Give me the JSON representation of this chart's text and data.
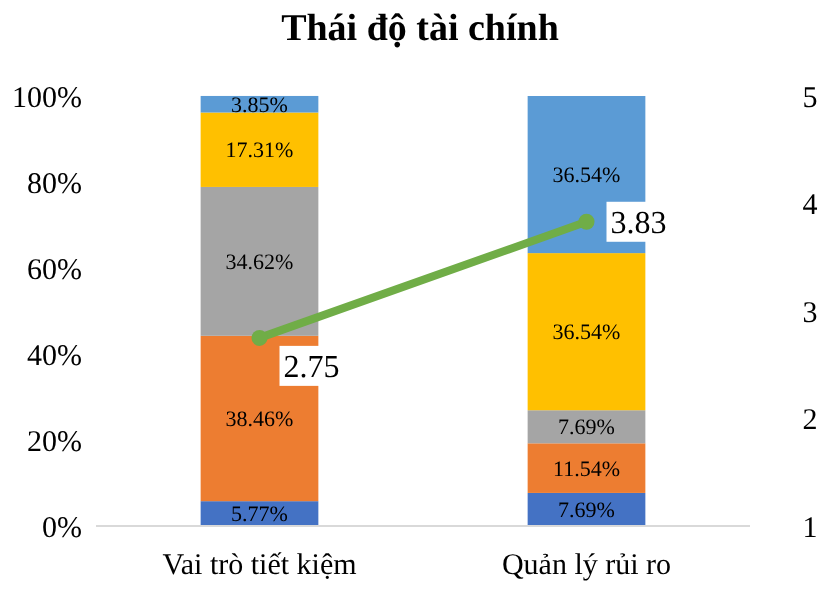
{
  "chart_data": {
    "type": "bar",
    "title": "Thái độ tài chính",
    "categories": [
      "Vai trò tiết kiệm",
      "Quản lý rủi ro"
    ],
    "stacked": true,
    "series": [
      {
        "color": "#4472c4",
        "values": [
          5.77,
          7.69
        ],
        "value_labels": [
          "5.77%",
          "7.69%"
        ]
      },
      {
        "color": "#ed7d31",
        "values": [
          38.46,
          11.54
        ],
        "value_labels": [
          "38.46%",
          "11.54%"
        ]
      },
      {
        "color": "#a5a5a5",
        "values": [
          34.62,
          7.69
        ],
        "value_labels": [
          "34.62%",
          "7.69%"
        ]
      },
      {
        "color": "#ffc000",
        "values": [
          17.31,
          36.54
        ],
        "value_labels": [
          "17.31%",
          "36.54%"
        ]
      },
      {
        "color": "#5b9bd5",
        "values": [
          3.85,
          36.54
        ],
        "value_labels": [
          "3.85%",
          "36.54%"
        ]
      },
      {
        "type": "line",
        "axis": "y2",
        "color": "#70ad47",
        "values": [
          2.75,
          3.83
        ],
        "value_labels": [
          "2.75",
          "3.83"
        ],
        "marker": "circle"
      }
    ],
    "ylim": [
      0,
      100
    ],
    "yticks": [
      {
        "value": 0,
        "label": "0%"
      },
      {
        "value": 20,
        "label": "20%"
      },
      {
        "value": 40,
        "label": "40%"
      },
      {
        "value": 60,
        "label": "60%"
      },
      {
        "value": 80,
        "label": "80%"
      },
      {
        "value": 100,
        "label": "100%"
      }
    ],
    "y2lim": [
      1,
      5
    ],
    "y2ticks": [
      1,
      2,
      3,
      4,
      5
    ],
    "grid": false
  }
}
